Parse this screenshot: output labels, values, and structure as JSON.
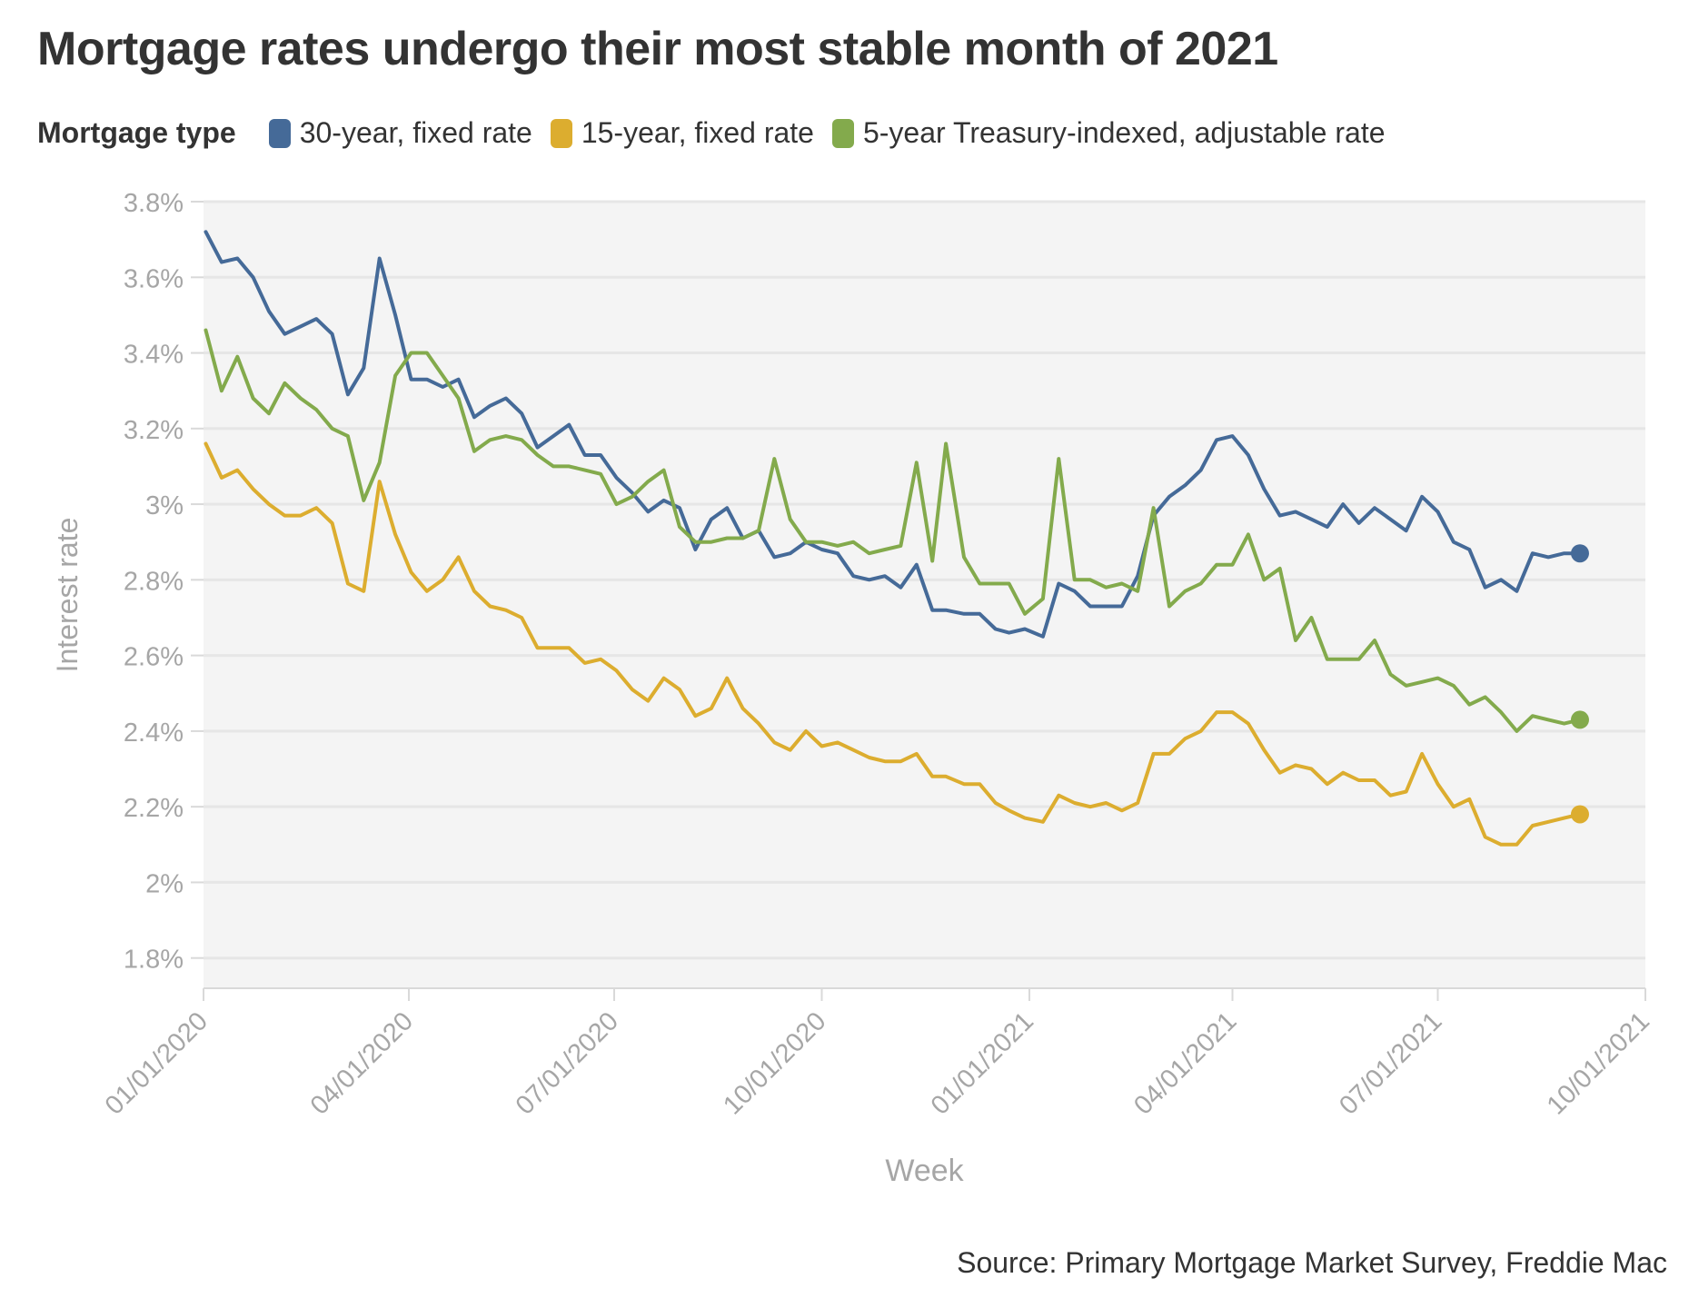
{
  "title": "Mortgage rates undergo their most stable month of 2021",
  "legend": {
    "title": "Mortgage type",
    "items": [
      {
        "label": "30-year, fixed rate",
        "color": "#456a98"
      },
      {
        "label": "15-year, fixed rate",
        "color": "#dcad2f"
      },
      {
        "label": "5-year Treasury-indexed, adjustable rate",
        "color": "#83aa4c"
      }
    ]
  },
  "source": "Source: Primary Mortgage Market Survey, Freddie Mac",
  "chart_data": {
    "type": "line",
    "xlabel": "Week",
    "ylabel": "Interest rate",
    "x_ticks": [
      "01/01/2020",
      "04/01/2020",
      "07/01/2020",
      "10/01/2020",
      "01/01/2021",
      "04/01/2021",
      "07/01/2021",
      "10/01/2021"
    ],
    "y_ticks": [
      "1.8%",
      "2%",
      "2.2%",
      "2.4%",
      "2.6%",
      "2.8%",
      "3%",
      "3.2%",
      "3.4%",
      "3.6%",
      "3.8%"
    ],
    "ylim": [
      1.72,
      3.8
    ],
    "xlim": [
      "2020-01-01",
      "2021-10-01"
    ],
    "grid": true,
    "legend_position": "top",
    "x": [
      "2020-01-02",
      "2020-01-09",
      "2020-01-16",
      "2020-01-23",
      "2020-01-30",
      "2020-02-06",
      "2020-02-13",
      "2020-02-20",
      "2020-02-27",
      "2020-03-05",
      "2020-03-12",
      "2020-03-19",
      "2020-03-26",
      "2020-04-02",
      "2020-04-09",
      "2020-04-16",
      "2020-04-23",
      "2020-04-30",
      "2020-05-07",
      "2020-05-14",
      "2020-05-21",
      "2020-05-28",
      "2020-06-04",
      "2020-06-11",
      "2020-06-18",
      "2020-06-25",
      "2020-07-02",
      "2020-07-09",
      "2020-07-16",
      "2020-07-23",
      "2020-07-30",
      "2020-08-06",
      "2020-08-13",
      "2020-08-20",
      "2020-08-27",
      "2020-09-03",
      "2020-09-10",
      "2020-09-17",
      "2020-09-24",
      "2020-10-01",
      "2020-10-08",
      "2020-10-15",
      "2020-10-22",
      "2020-10-29",
      "2020-11-05",
      "2020-11-12",
      "2020-11-19",
      "2020-11-25",
      "2020-12-03",
      "2020-12-10",
      "2020-12-17",
      "2020-12-23",
      "2020-12-30",
      "2021-01-07",
      "2021-01-14",
      "2021-01-21",
      "2021-01-28",
      "2021-02-04",
      "2021-02-11",
      "2021-02-18",
      "2021-02-25",
      "2021-03-04",
      "2021-03-11",
      "2021-03-18",
      "2021-03-25",
      "2021-04-01",
      "2021-04-08",
      "2021-04-15",
      "2021-04-22",
      "2021-04-29",
      "2021-05-06",
      "2021-05-13",
      "2021-05-20",
      "2021-05-27",
      "2021-06-03",
      "2021-06-10",
      "2021-06-17",
      "2021-06-24",
      "2021-07-01",
      "2021-07-08",
      "2021-07-15",
      "2021-07-22",
      "2021-07-29",
      "2021-08-05",
      "2021-08-12",
      "2021-08-19",
      "2021-08-26",
      "2021-09-02"
    ],
    "series": [
      {
        "name": "30-year, fixed rate",
        "color": "#456a98",
        "values": [
          3.72,
          3.64,
          3.65,
          3.6,
          3.51,
          3.45,
          3.47,
          3.49,
          3.45,
          3.29,
          3.36,
          3.65,
          3.5,
          3.33,
          3.33,
          3.31,
          3.33,
          3.23,
          3.26,
          3.28,
          3.24,
          3.15,
          3.18,
          3.21,
          3.13,
          3.13,
          3.07,
          3.03,
          2.98,
          3.01,
          2.99,
          2.88,
          2.96,
          2.99,
          2.91,
          2.93,
          2.86,
          2.87,
          2.9,
          2.88,
          2.87,
          2.81,
          2.8,
          2.81,
          2.78,
          2.84,
          2.72,
          2.72,
          2.71,
          2.71,
          2.67,
          2.66,
          2.67,
          2.65,
          2.79,
          2.77,
          2.73,
          2.73,
          2.73,
          2.81,
          2.97,
          3.02,
          3.05,
          3.09,
          3.17,
          3.18,
          3.13,
          3.04,
          2.97,
          2.98,
          2.96,
          2.94,
          3.0,
          2.95,
          2.99,
          2.96,
          2.93,
          3.02,
          2.98,
          2.9,
          2.88,
          2.78,
          2.8,
          2.77,
          2.87,
          2.86,
          2.87,
          2.87
        ]
      },
      {
        "name": "15-year, fixed rate",
        "color": "#dcad2f",
        "values": [
          3.16,
          3.07,
          3.09,
          3.04,
          3.0,
          2.97,
          2.97,
          2.99,
          2.95,
          2.79,
          2.77,
          3.06,
          2.92,
          2.82,
          2.77,
          2.8,
          2.86,
          2.77,
          2.73,
          2.72,
          2.7,
          2.62,
          2.62,
          2.62,
          2.58,
          2.59,
          2.56,
          2.51,
          2.48,
          2.54,
          2.51,
          2.44,
          2.46,
          2.54,
          2.46,
          2.42,
          2.37,
          2.35,
          2.4,
          2.36,
          2.37,
          2.35,
          2.33,
          2.32,
          2.32,
          2.34,
          2.28,
          2.28,
          2.26,
          2.26,
          2.21,
          2.19,
          2.17,
          2.16,
          2.23,
          2.21,
          2.2,
          2.21,
          2.19,
          2.21,
          2.34,
          2.34,
          2.38,
          2.4,
          2.45,
          2.45,
          2.42,
          2.35,
          2.29,
          2.31,
          2.3,
          2.26,
          2.29,
          2.27,
          2.27,
          2.23,
          2.24,
          2.34,
          2.26,
          2.2,
          2.22,
          2.12,
          2.1,
          2.1,
          2.15,
          2.16,
          2.17,
          2.18
        ]
      },
      {
        "name": "5-year Treasury-indexed, adjustable rate",
        "color": "#83aa4c",
        "values": [
          3.46,
          3.3,
          3.39,
          3.28,
          3.24,
          3.32,
          3.28,
          3.25,
          3.2,
          3.18,
          3.01,
          3.11,
          3.34,
          3.4,
          3.4,
          3.34,
          3.28,
          3.14,
          3.17,
          3.18,
          3.17,
          3.13,
          3.1,
          3.1,
          3.09,
          3.08,
          3.0,
          3.02,
          3.06,
          3.09,
          2.94,
          2.9,
          2.9,
          2.91,
          2.91,
          2.93,
          3.12,
          2.96,
          2.9,
          2.9,
          2.89,
          2.9,
          2.87,
          2.88,
          2.89,
          3.11,
          2.85,
          3.16,
          2.86,
          2.79,
          2.79,
          2.79,
          2.71,
          2.75,
          3.12,
          2.8,
          2.8,
          2.78,
          2.79,
          2.77,
          2.99,
          2.73,
          2.77,
          2.79,
          2.84,
          2.84,
          2.92,
          2.8,
          2.83,
          2.64,
          2.7,
          2.59,
          2.59,
          2.59,
          2.64,
          2.55,
          2.52,
          2.53,
          2.54,
          2.52,
          2.47,
          2.49,
          2.45,
          2.4,
          2.44,
          2.43,
          2.42,
          2.43
        ]
      }
    ]
  }
}
